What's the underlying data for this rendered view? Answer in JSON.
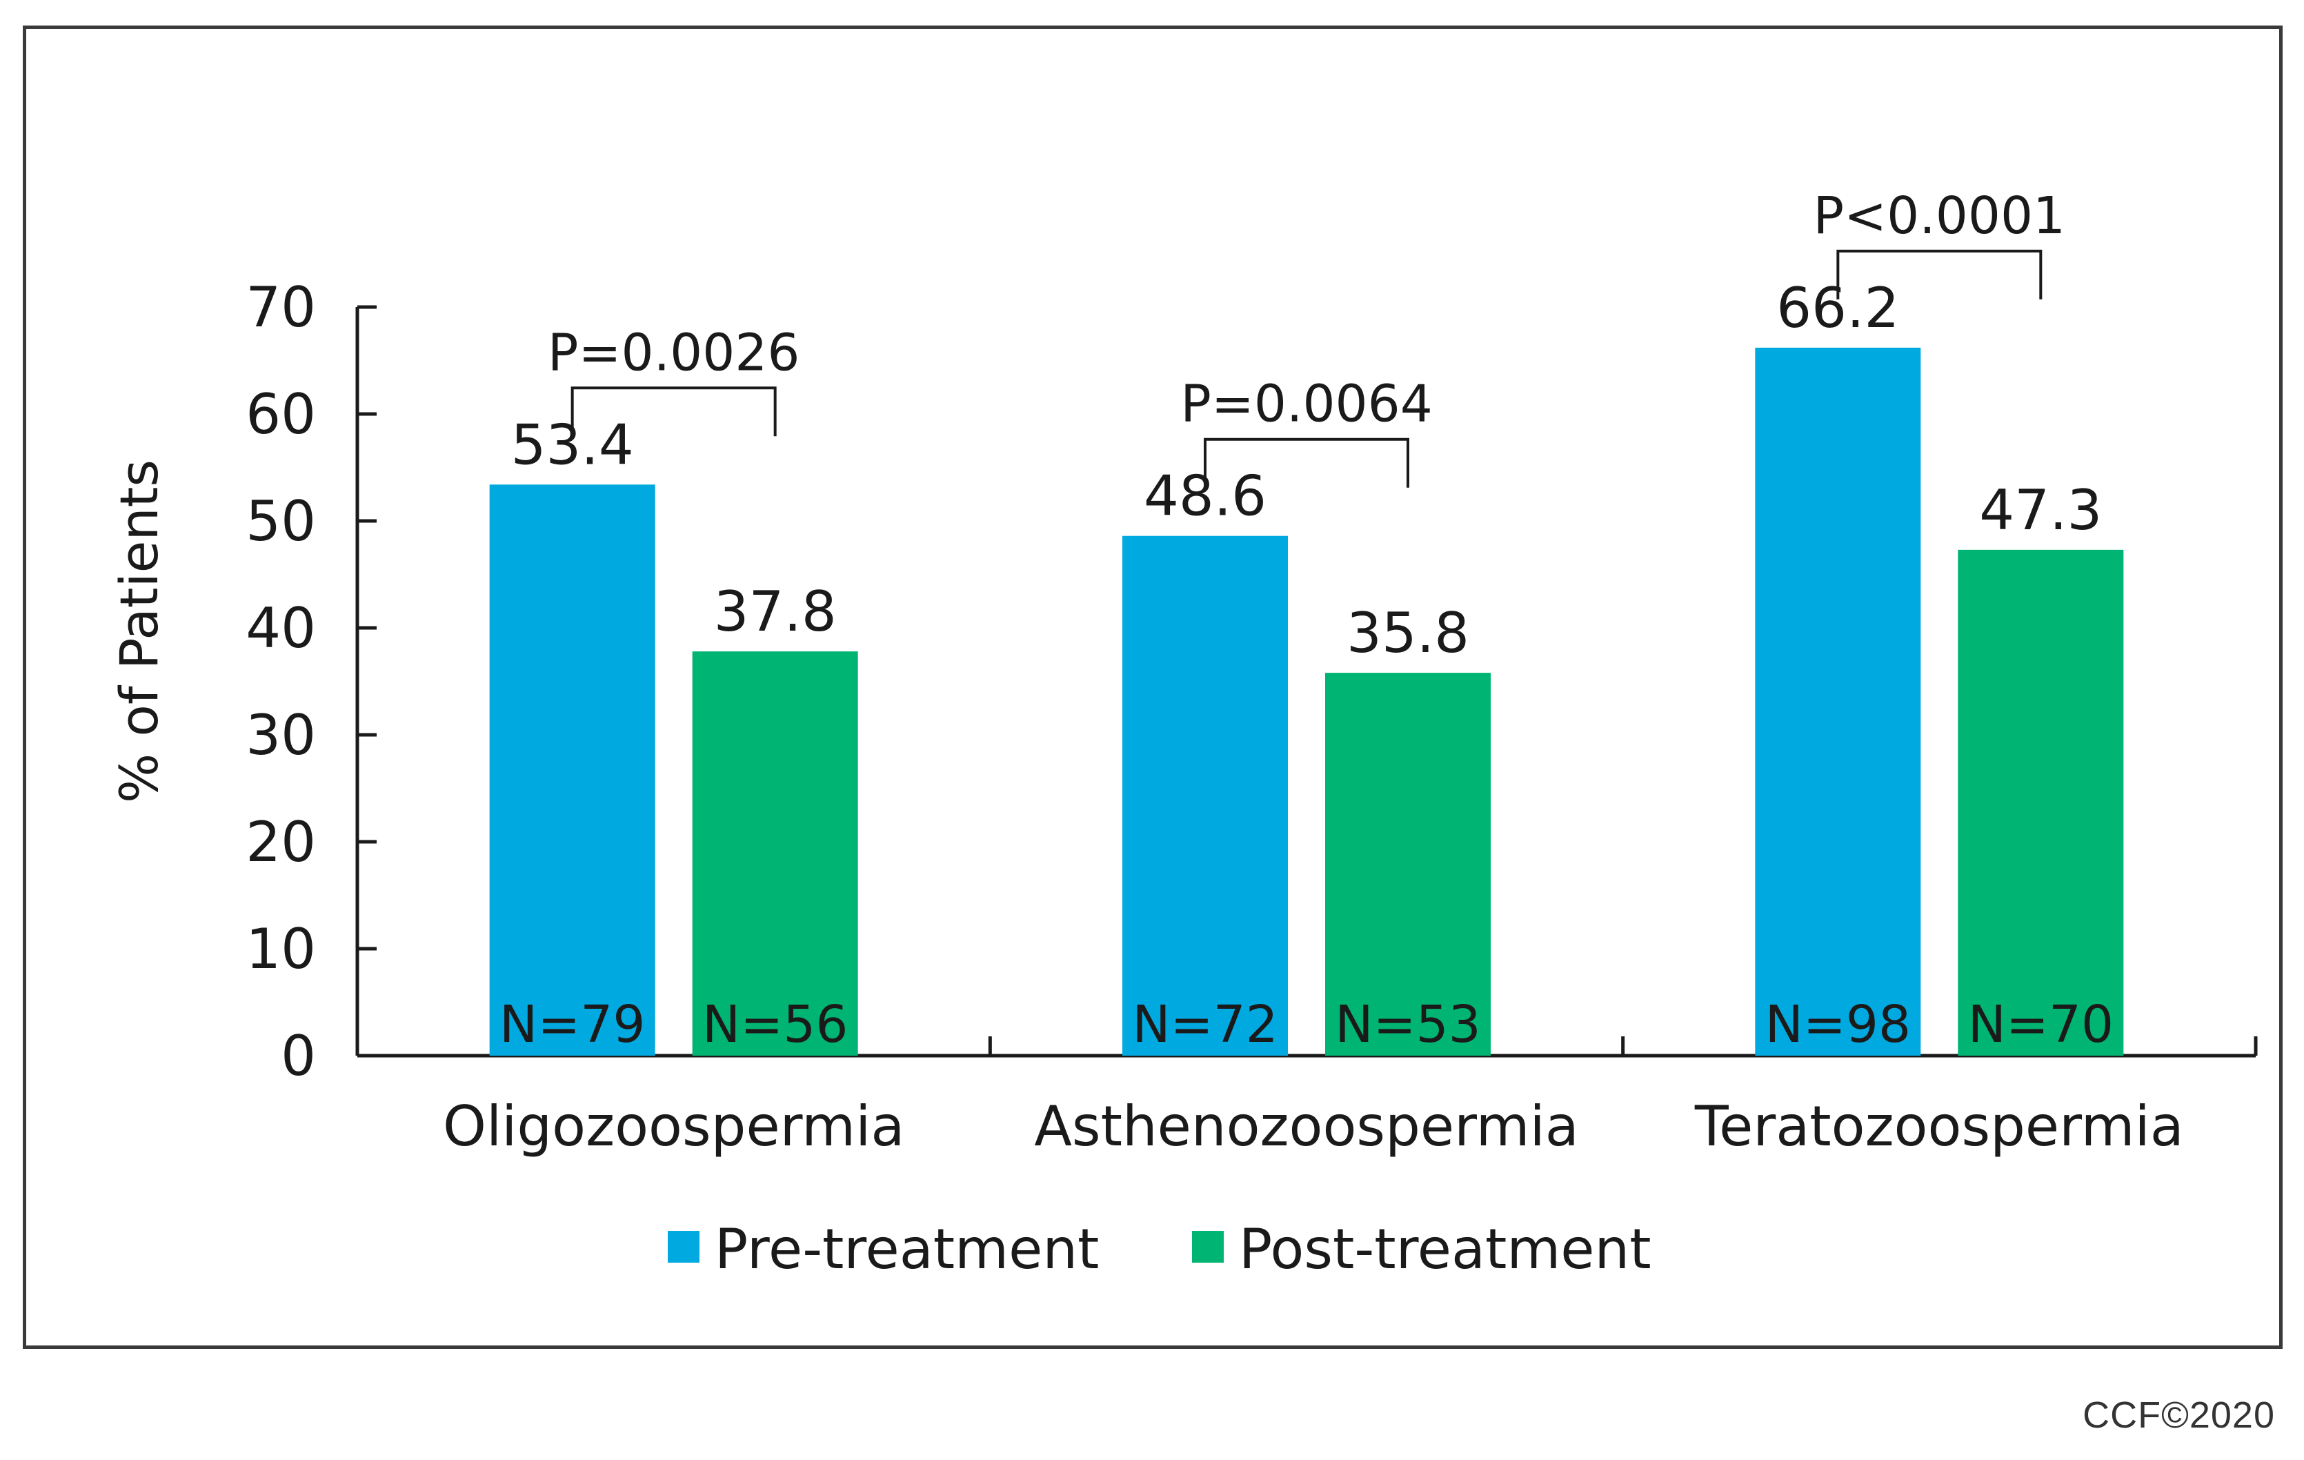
{
  "chart_data": {
    "type": "bar",
    "title": "",
    "xlabel": "",
    "ylabel": "% of Patients",
    "ylim": [
      0,
      70
    ],
    "yticks": [
      0,
      10,
      20,
      30,
      40,
      50,
      60,
      70
    ],
    "categories": [
      "Oligozoospermia",
      "Asthenozoospermia",
      "Teratozoospermia"
    ],
    "series": [
      {
        "name": "Pre-treatment",
        "color": "#00A9E0",
        "values": [
          53.4,
          48.6,
          66.2
        ],
        "value_labels": [
          "53.4",
          "48.6",
          "66.2"
        ],
        "n_labels": [
          "N=79",
          "N=72",
          "N=98"
        ]
      },
      {
        "name": "Post-treatment",
        "color": "#00B473",
        "values": [
          37.8,
          35.8,
          47.3
        ],
        "value_labels": [
          "37.8",
          "35.8",
          "47.3"
        ],
        "n_labels": [
          "N=56",
          "N=53",
          "N=70"
        ]
      }
    ],
    "p_values": [
      "P=0.0026",
      "P=0.0064",
      "P<0.0001"
    ],
    "legend_position": "bottom-center",
    "grid": false
  },
  "copyright": "CCF©2020"
}
